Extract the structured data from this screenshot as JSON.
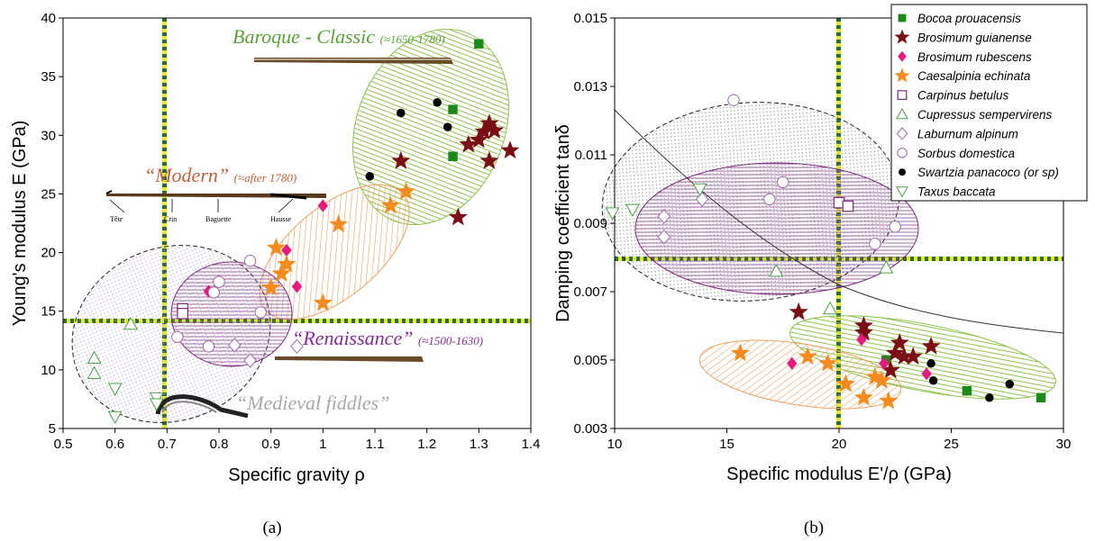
{
  "chart_data": [
    {
      "type": "scatter",
      "panel_label": "(a)",
      "xlabel": "Specific gravity ρ",
      "ylabel": "Young's modulus E (GPa)",
      "xlim": [
        0.5,
        1.4
      ],
      "ylim": [
        5,
        40
      ],
      "xticks": [
        "0.5",
        "0.6",
        "0.7",
        "0.8",
        "0.9",
        "1",
        "1.1",
        "1.2",
        "1.3",
        "1.4"
      ],
      "yticks": [
        "5",
        "10",
        "15",
        "20",
        "25",
        "30",
        "35",
        "40"
      ],
      "threshold_lines": {
        "x": 0.7,
        "y": 14
      },
      "annotations": {
        "baroque": "Baroque - Classic",
        "baroque_dates": "(≈1650-1780)",
        "modern": "“Modern”",
        "modern_dates": "(≈after 1780)",
        "renaissance": "“Renaissance”",
        "renaissance_dates": "(≈1500-1630)",
        "medieval": "“Medieval fiddles”",
        "bow_parts": [
          "Tête",
          "Crin",
          "Baguette",
          "Hausse"
        ]
      },
      "series": [
        {
          "name": "Bocoa prouacensis",
          "marker": "square",
          "color": "#1a8a1a",
          "points": [
            [
              1.3,
              37.8
            ],
            [
              1.25,
              32.2
            ],
            [
              1.25,
              28.2
            ]
          ]
        },
        {
          "name": "Brosimum guianense",
          "marker": "star",
          "color": "#7a1016",
          "points": [
            [
              1.15,
              27.8
            ],
            [
              1.26,
              23
            ],
            [
              1.28,
              29.2
            ],
            [
              1.3,
              29.6
            ],
            [
              1.31,
              30.3
            ],
            [
              1.32,
              31
            ],
            [
              1.33,
              30.4
            ],
            [
              1.32,
              27.8
            ],
            [
              1.36,
              28.7
            ]
          ]
        },
        {
          "name": "Brosimum rubescens",
          "marker": "diamond",
          "color": "#e8197d",
          "points": [
            [
              0.78,
              16.7
            ],
            [
              0.93,
              20.2
            ],
            [
              0.95,
              17.1
            ],
            [
              1.0,
              24
            ]
          ]
        },
        {
          "name": "Caesalpinia echinata",
          "marker": "star",
          "color": "#f58a1f",
          "points": [
            [
              0.91,
              20.4
            ],
            [
              0.93,
              19
            ],
            [
              0.92,
              18.2
            ],
            [
              0.9,
              17
            ],
            [
              1.0,
              15.7
            ],
            [
              1.03,
              22.4
            ],
            [
              1.13,
              24
            ],
            [
              1.16,
              25.2
            ]
          ]
        },
        {
          "name": "Carpinus betulus",
          "marker": "hsquare",
          "color": "#7a2a7a",
          "points": [
            [
              0.73,
              15.2
            ],
            [
              0.73,
              14.8
            ]
          ]
        },
        {
          "name": "Cupressus sempervirens",
          "marker": "utri",
          "color": "#4aa04a",
          "points": [
            [
              0.56,
              11
            ],
            [
              0.56,
              9.7
            ],
            [
              0.63,
              13.9
            ]
          ]
        },
        {
          "name": "Laburnum alpinum",
          "marker": "hdiamond",
          "color": "#9a6aa8",
          "points": [
            [
              0.83,
              12.1
            ],
            [
              0.86,
              10.8
            ],
            [
              0.95,
              12
            ]
          ]
        },
        {
          "name": "Sorbus domestica",
          "marker": "circle",
          "color": "#9a6aa8",
          "points": [
            [
              0.72,
              12.8
            ],
            [
              0.78,
              12
            ],
            [
              0.8,
              17.5
            ],
            [
              0.79,
              16.6
            ],
            [
              0.86,
              19.3
            ],
            [
              0.88,
              14.9
            ]
          ]
        },
        {
          "name": "Swartzia panacoco (or sp)",
          "marker": "dot",
          "color": "#000000",
          "points": [
            [
              1.09,
              26.5
            ],
            [
              1.15,
              31.9
            ],
            [
              1.22,
              32.8
            ],
            [
              1.24,
              30.7
            ]
          ]
        },
        {
          "name": "Taxus baccata",
          "marker": "dtri",
          "color": "#4aa04a",
          "points": [
            [
              0.6,
              8.4
            ],
            [
              0.6,
              6
            ],
            [
              0.68,
              7.6
            ],
            [
              0.68,
              7.1
            ]
          ]
        }
      ]
    },
    {
      "type": "scatter",
      "panel_label": "(b)",
      "xlabel": "Specific modulus E'/ρ (GPa)",
      "ylabel": "Damping coefficient tanδ",
      "xlim": [
        10,
        30
      ],
      "ylim": [
        0.003,
        0.015
      ],
      "xticks": [
        "10",
        "15",
        "20",
        "25",
        "30"
      ],
      "yticks": [
        "0.003",
        "0.005",
        "0.007",
        "0.009",
        "0.011",
        "0.013",
        "0.015"
      ],
      "threshold_lines": {
        "x": 20,
        "y": 0.008
      },
      "legend_position": "top-right",
      "series": [
        {
          "name": "Bocoa prouacensis",
          "marker": "square",
          "color": "#1a8a1a",
          "points": [
            [
              22.1,
              0.005
            ],
            [
              25.7,
              0.0041
            ],
            [
              29.0,
              0.0039
            ]
          ]
        },
        {
          "name": "Brosimum guianense",
          "marker": "star",
          "color": "#7a1016",
          "points": [
            [
              18.2,
              0.0064
            ],
            [
              21.1,
              0.006
            ],
            [
              21.1,
              0.0058
            ],
            [
              22.3,
              0.0047
            ],
            [
              22.5,
              0.0052
            ],
            [
              22.7,
              0.0055
            ],
            [
              22.9,
              0.0051
            ],
            [
              23.3,
              0.0051
            ],
            [
              24.1,
              0.0054
            ]
          ]
        },
        {
          "name": "Brosimum rubescens",
          "marker": "diamond",
          "color": "#e8197d",
          "points": [
            [
              17.9,
              0.0049
            ],
            [
              21.0,
              0.0056
            ],
            [
              22.0,
              0.0049
            ],
            [
              23.9,
              0.0046
            ]
          ]
        },
        {
          "name": "Caesalpinia echinata",
          "marker": "star",
          "color": "#f58a1f",
          "points": [
            [
              15.6,
              0.0052
            ],
            [
              18.6,
              0.0051
            ],
            [
              19.5,
              0.0049
            ],
            [
              20.3,
              0.0043
            ],
            [
              21.1,
              0.0039
            ],
            [
              21.6,
              0.0045
            ],
            [
              21.9,
              0.0044
            ],
            [
              22.2,
              0.0038
            ]
          ]
        },
        {
          "name": "Carpinus betulus",
          "marker": "hsquare",
          "color": "#7a2a7a",
          "points": [
            [
              20.0,
              0.0096
            ],
            [
              20.4,
              0.0095
            ]
          ]
        },
        {
          "name": "Cupressus sempervirens",
          "marker": "utri",
          "color": "#4aa04a",
          "points": [
            [
              17.2,
              0.0076
            ],
            [
              19.6,
              0.0065
            ],
            [
              22.1,
              0.0077
            ]
          ]
        },
        {
          "name": "Laburnum alpinum",
          "marker": "hdiamond",
          "color": "#9a6aa8",
          "points": [
            [
              12.2,
              0.0092
            ],
            [
              12.2,
              0.0086
            ],
            [
              13.9,
              0.0097
            ]
          ]
        },
        {
          "name": "Sorbus domestica",
          "marker": "circle",
          "color": "#9a6aa8",
          "points": [
            [
              15.3,
              0.0126
            ],
            [
              16.9,
              0.0097
            ],
            [
              17.5,
              0.0102
            ],
            [
              21.6,
              0.0084
            ],
            [
              22.5,
              0.0089
            ]
          ]
        },
        {
          "name": "Swartzia panacoco (or sp)",
          "marker": "dot",
          "color": "#000000",
          "points": [
            [
              24.1,
              0.0049
            ],
            [
              24.2,
              0.0044
            ],
            [
              26.7,
              0.0039
            ],
            [
              27.6,
              0.0043
            ]
          ]
        },
        {
          "name": "Taxus baccata",
          "marker": "dtri",
          "color": "#4aa04a",
          "points": [
            [
              9.9,
              0.0093
            ],
            [
              10.8,
              0.0094
            ],
            [
              13.8,
              0.01
            ]
          ]
        }
      ]
    }
  ]
}
